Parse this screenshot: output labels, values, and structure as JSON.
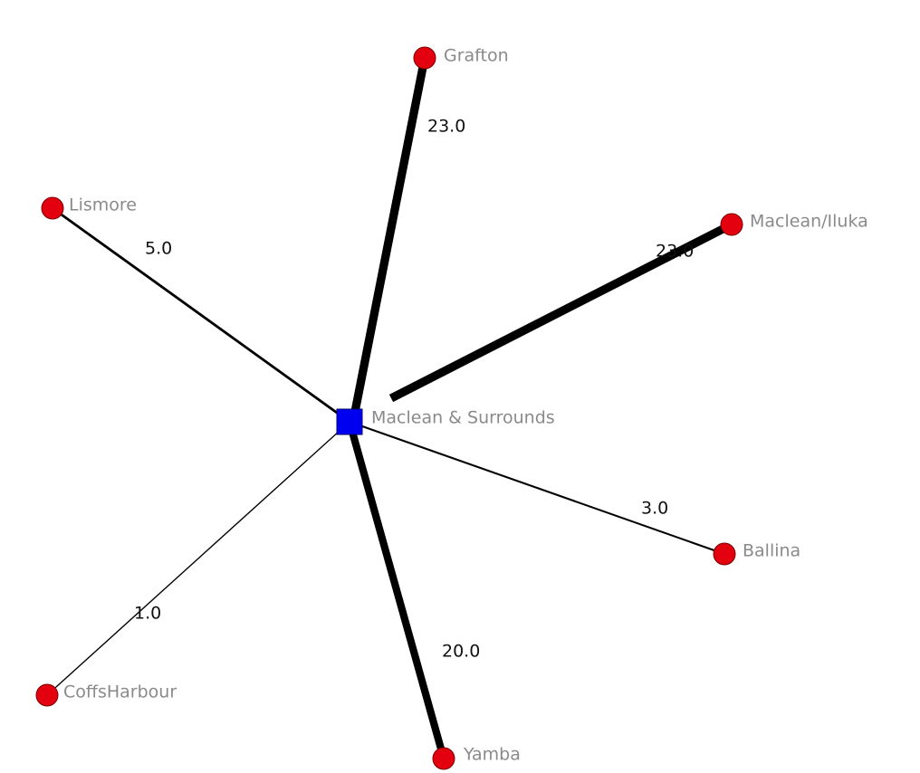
{
  "center": {
    "label": "Maclean & Surrounds"
  },
  "spokes": [
    {
      "label": "Grafton",
      "weight": {
        "value": 23,
        "label": "23.0"
      }
    },
    {
      "label": "Maclean/Iluka",
      "weight": {
        "value": 23,
        "label": "23.0"
      }
    },
    {
      "label": "Lismore",
      "weight": {
        "value": 5,
        "label": "5.0"
      }
    },
    {
      "label": "Ballina",
      "weight": {
        "value": 3,
        "label": "3.0"
      }
    },
    {
      "label": "CoffsHarbour",
      "weight": {
        "value": 1,
        "label": "1.0"
      }
    },
    {
      "label": "Yamba",
      "weight": {
        "value": 20,
        "label": "20.0"
      }
    }
  ]
}
